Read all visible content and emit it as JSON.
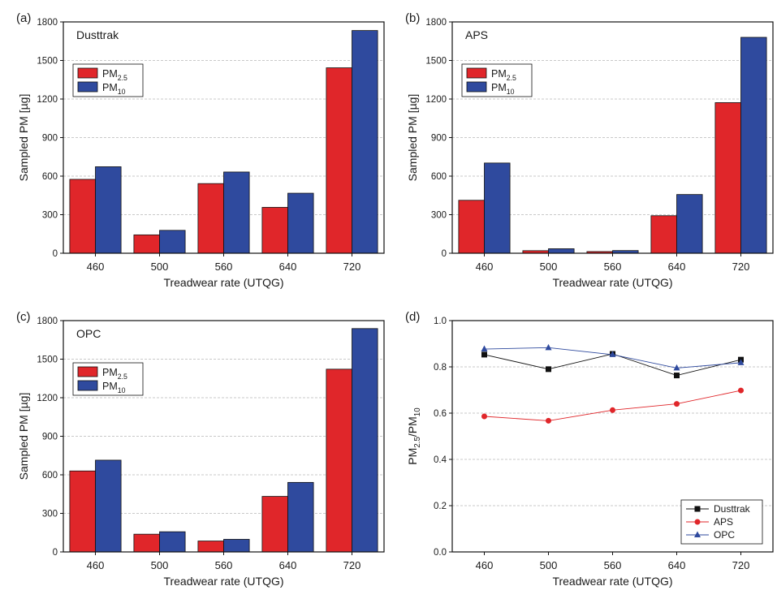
{
  "colors": {
    "pm25": "#e0262a",
    "pm10": "#2f4a9e",
    "dusttrak": "#111111",
    "aps": "#e0262a",
    "opc": "#2f4a9e"
  },
  "chart_data": [
    {
      "panel": "(a)",
      "type": "bar",
      "title": "Dusttrak",
      "categories": [
        "460",
        "500",
        "560",
        "640",
        "720"
      ],
      "series": [
        {
          "name": "PM",
          "sub": "2.5",
          "values": [
            575,
            143,
            542,
            357,
            1443
          ]
        },
        {
          "name": "PM",
          "sub": "10",
          "values": [
            673,
            178,
            632,
            467,
            1733
          ]
        }
      ],
      "xlabel": "Treadwear rate (UTQG)",
      "ylabel": "Sampled PM [µg]",
      "ylim": [
        0,
        1800
      ],
      "yticks": [
        "0",
        "300",
        "600",
        "900",
        "1200",
        "1500",
        "1800"
      ],
      "grid": true,
      "legend": "upper-left"
    },
    {
      "panel": "(b)",
      "type": "bar",
      "title": "APS",
      "categories": [
        "460",
        "500",
        "560",
        "640",
        "720"
      ],
      "series": [
        {
          "name": "PM",
          "sub": "2.5",
          "values": [
            412,
            20,
            13,
            292,
            1172
          ]
        },
        {
          "name": "PM",
          "sub": "10",
          "values": [
            702,
            35,
            21,
            457,
            1680
          ]
        }
      ],
      "xlabel": "Treadwear rate (UTQG)",
      "ylabel": "Sampled PM [µg]",
      "ylim": [
        0,
        1800
      ],
      "yticks": [
        "0",
        "300",
        "600",
        "900",
        "1200",
        "1500",
        "1800"
      ],
      "grid": true,
      "legend": "upper-left"
    },
    {
      "panel": "(c)",
      "type": "bar",
      "title": "OPC",
      "categories": [
        "460",
        "500",
        "560",
        "640",
        "720"
      ],
      "series": [
        {
          "name": "PM",
          "sub": "2.5",
          "values": [
            630,
            138,
            85,
            432,
            1422
          ]
        },
        {
          "name": "PM",
          "sub": "10",
          "values": [
            714,
            157,
            98,
            541,
            1738
          ]
        }
      ],
      "xlabel": "Treadwear rate (UTQG)",
      "ylabel": "Sampled PM [µg]",
      "ylim": [
        0,
        1800
      ],
      "yticks": [
        "0",
        "300",
        "600",
        "900",
        "1200",
        "1500",
        "1800"
      ],
      "grid": true,
      "legend": "upper-left"
    },
    {
      "panel": "(d)",
      "type": "line",
      "x": [
        "460",
        "500",
        "560",
        "640",
        "720"
      ],
      "series": [
        {
          "name": "Dusttrak",
          "marker": "square",
          "values": [
            0.853,
            0.79,
            0.856,
            0.763,
            0.831
          ]
        },
        {
          "name": "APS",
          "marker": "circle",
          "values": [
            0.586,
            0.567,
            0.613,
            0.64,
            0.698
          ]
        },
        {
          "name": "OPC",
          "marker": "triangle",
          "values": [
            0.877,
            0.883,
            0.853,
            0.795,
            0.818
          ]
        }
      ],
      "xlabel": "Treadwear rate (UTQG)",
      "ylabel": {
        "pre": "PM",
        "sub1": "2.5",
        "mid": "/PM",
        "sub2": "10"
      },
      "ylim": [
        0.0,
        1.0
      ],
      "yticks": [
        "0.0",
        "0.2",
        "0.4",
        "0.6",
        "0.8",
        "1.0"
      ],
      "grid": true,
      "legend": "lower-right"
    }
  ]
}
